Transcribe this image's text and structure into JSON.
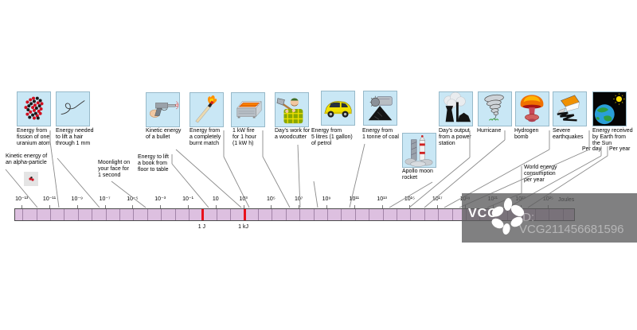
{
  "axis": {
    "unit_label": "Joules",
    "ticks": [
      {
        "exp": -13,
        "text": "10⁻¹³"
      },
      {
        "exp": -11,
        "text": "10⁻¹¹"
      },
      {
        "exp": -9,
        "text": "10⁻⁹"
      },
      {
        "exp": -7,
        "text": "10⁻⁷"
      },
      {
        "exp": -5,
        "text": "10⁻⁵"
      },
      {
        "exp": -3,
        "text": "10⁻³"
      },
      {
        "exp": -1,
        "text": "10⁻¹"
      },
      {
        "exp": 1,
        "text": "10"
      },
      {
        "exp": 3,
        "text": "10³"
      },
      {
        "exp": 5,
        "text": "10⁵"
      },
      {
        "exp": 7,
        "text": "10⁷"
      },
      {
        "exp": 9,
        "text": "10⁹"
      },
      {
        "exp": 11,
        "text": "10¹¹"
      },
      {
        "exp": 13,
        "text": "10¹³"
      },
      {
        "exp": 15,
        "text": "10¹⁵"
      },
      {
        "exp": 17,
        "text": "10¹⁷"
      },
      {
        "exp": 19,
        "text": "10¹⁹"
      },
      {
        "exp": 21,
        "text": "10²¹"
      },
      {
        "exp": 23,
        "text": "10²³"
      },
      {
        "exp": 25,
        "text": "10²⁵"
      }
    ],
    "marks": [
      {
        "exp": 0,
        "label": "1 J"
      },
      {
        "exp": 3,
        "label": "1 kJ"
      }
    ],
    "exp_range": [
      -13,
      26
    ]
  },
  "items": [
    {
      "id": "uranium",
      "label": "Energy from\nfission of one\nuranium atom",
      "icon": "uranium-fission-icon"
    },
    {
      "id": "hair",
      "label": "Energy needed\nto lift a hair\nthrough 1 mm",
      "icon": "hair-icon"
    },
    {
      "id": "alpha",
      "label": "Kinetic energy of\nan alpha-particle",
      "icon": "alpha-particle-icon"
    },
    {
      "id": "moonlight",
      "label": "Moonlight on\nyour face for\n1 second"
    },
    {
      "id": "book",
      "label": "Energy to lift\na book from\nfloor to table"
    },
    {
      "id": "bullet",
      "label": "Kinetic energy\nof a bullet",
      "icon": "gun-icon"
    },
    {
      "id": "match",
      "label": "Energy from\na completely\nburnt match",
      "icon": "match-icon"
    },
    {
      "id": "fire",
      "label": "1 kW fire\nfor 1 hour\n(1 kW h)",
      "icon": "electric-fire-icon"
    },
    {
      "id": "woodcutter",
      "label": "Day's work for\na woodcutter",
      "icon": "woodcutter-icon"
    },
    {
      "id": "petrol",
      "label": "Energy from\n5 litres (1 gallon)\nof petrol",
      "icon": "car-icon"
    },
    {
      "id": "coal",
      "label": "Energy from\n1 tonne of coal",
      "icon": "coal-icon"
    },
    {
      "id": "apollo",
      "label": "Apollo moon\nrocket",
      "icon": "rocket-icon"
    },
    {
      "id": "power",
      "label": "Day's output\nfrom a power\nstation",
      "icon": "power-station-icon"
    },
    {
      "id": "hurricane",
      "label": "Hurricane",
      "icon": "hurricane-icon"
    },
    {
      "id": "bomb",
      "label": "Hydrogen\nbomb",
      "icon": "mushroom-cloud-icon"
    },
    {
      "id": "quake",
      "label": "Severe\nearthquakes",
      "icon": "earthquake-icon"
    },
    {
      "id": "earth",
      "label": "Energy received\nby Earth from\nthe Sun",
      "icon": "earth-sun-icon"
    },
    {
      "id": "perday",
      "label": "Per day"
    },
    {
      "id": "peryear",
      "label": "Per year"
    },
    {
      "id": "world",
      "label": "World energy\nconsumption\nper year"
    }
  ],
  "watermark": {
    "logo_text": "VCG",
    "id_text": "ID: VCG211456681596"
  },
  "colors": {
    "bar_fill": "#ddc0e0",
    "bar_divider": "#a284a8",
    "mark_red": "#e8101c",
    "box_bg": "#c9e7f5",
    "leader_line": "#8a8a8a"
  }
}
